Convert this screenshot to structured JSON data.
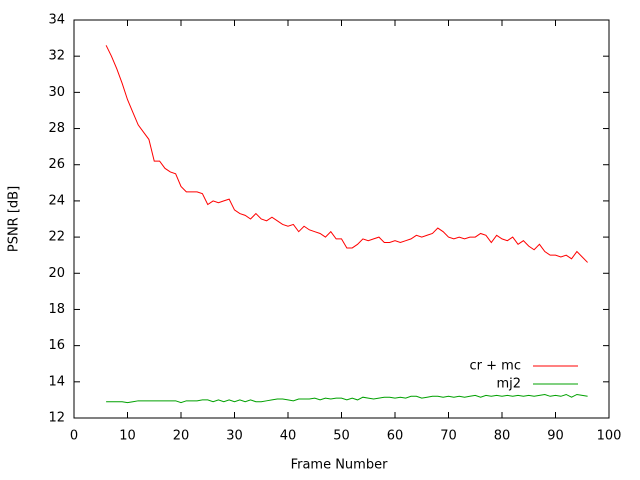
{
  "chart_data": {
    "type": "line",
    "xlabel": "Frame Number",
    "ylabel": "PSNR [dB]",
    "x": [
      6,
      7,
      8,
      9,
      10,
      11,
      12,
      13,
      14,
      15,
      16,
      17,
      18,
      19,
      20,
      21,
      22,
      23,
      24,
      25,
      26,
      27,
      28,
      29,
      30,
      31,
      32,
      33,
      34,
      35,
      36,
      37,
      38,
      39,
      40,
      41,
      42,
      43,
      44,
      45,
      46,
      47,
      48,
      49,
      50,
      51,
      52,
      53,
      54,
      55,
      56,
      57,
      58,
      59,
      60,
      61,
      62,
      63,
      64,
      65,
      66,
      67,
      68,
      69,
      70,
      71,
      72,
      73,
      74,
      75,
      76,
      77,
      78,
      79,
      80,
      81,
      82,
      83,
      84,
      85,
      86,
      87,
      88,
      89,
      90,
      91,
      92,
      93,
      94,
      95,
      96
    ],
    "series": [
      {
        "name": "cr + mc",
        "color": "#ff0000",
        "values": [
          32.6,
          32.0,
          31.3,
          30.5,
          29.6,
          28.9,
          28.2,
          27.8,
          27.4,
          26.2,
          26.2,
          25.8,
          25.6,
          25.5,
          24.8,
          24.5,
          24.5,
          24.5,
          24.4,
          23.8,
          24.0,
          23.9,
          24.0,
          24.1,
          23.5,
          23.3,
          23.2,
          23.0,
          23.3,
          23.0,
          22.9,
          23.1,
          22.9,
          22.7,
          22.6,
          22.7,
          22.3,
          22.6,
          22.4,
          22.3,
          22.2,
          22.0,
          22.3,
          21.9,
          21.9,
          21.4,
          21.4,
          21.6,
          21.9,
          21.8,
          21.9,
          22.0,
          21.7,
          21.7,
          21.8,
          21.7,
          21.8,
          21.9,
          22.1,
          22.0,
          22.1,
          22.2,
          22.5,
          22.3,
          22.0,
          21.9,
          22.0,
          21.9,
          22.0,
          22.0,
          22.2,
          22.1,
          21.7,
          22.1,
          21.9,
          21.8,
          22.0,
          21.6,
          21.8,
          21.5,
          21.3,
          21.6,
          21.2,
          21.0,
          21.0,
          20.9,
          21.0,
          20.8,
          21.2,
          20.9,
          20.6
        ]
      },
      {
        "name": "mj2",
        "color": "#00a000",
        "values": [
          12.9,
          12.9,
          12.9,
          12.9,
          12.85,
          12.9,
          12.95,
          12.95,
          12.95,
          12.95,
          12.95,
          12.95,
          12.95,
          12.95,
          12.85,
          12.95,
          12.95,
          12.95,
          13.0,
          13.0,
          12.9,
          13.0,
          12.9,
          13.0,
          12.9,
          13.0,
          12.9,
          13.0,
          12.9,
          12.9,
          12.95,
          13.0,
          13.05,
          13.05,
          13.0,
          12.95,
          13.05,
          13.05,
          13.05,
          13.1,
          13.0,
          13.1,
          13.05,
          13.1,
          13.1,
          13.0,
          13.1,
          13.0,
          13.15,
          13.1,
          13.05,
          13.1,
          13.15,
          13.15,
          13.1,
          13.15,
          13.1,
          13.2,
          13.2,
          13.1,
          13.15,
          13.2,
          13.2,
          13.15,
          13.2,
          13.15,
          13.2,
          13.15,
          13.2,
          13.25,
          13.15,
          13.25,
          13.2,
          13.25,
          13.2,
          13.25,
          13.2,
          13.25,
          13.2,
          13.25,
          13.2,
          13.25,
          13.3,
          13.2,
          13.25,
          13.2,
          13.3,
          13.15,
          13.3,
          13.25,
          13.2
        ]
      }
    ],
    "xlim": [
      0,
      100
    ],
    "xticks": [
      0,
      10,
      20,
      30,
      40,
      50,
      60,
      70,
      80,
      90,
      100
    ],
    "ylim": [
      12,
      34
    ],
    "yticks": [
      12,
      14,
      16,
      18,
      20,
      22,
      24,
      26,
      28,
      30,
      32,
      34
    ],
    "legend": "bottom-right"
  }
}
